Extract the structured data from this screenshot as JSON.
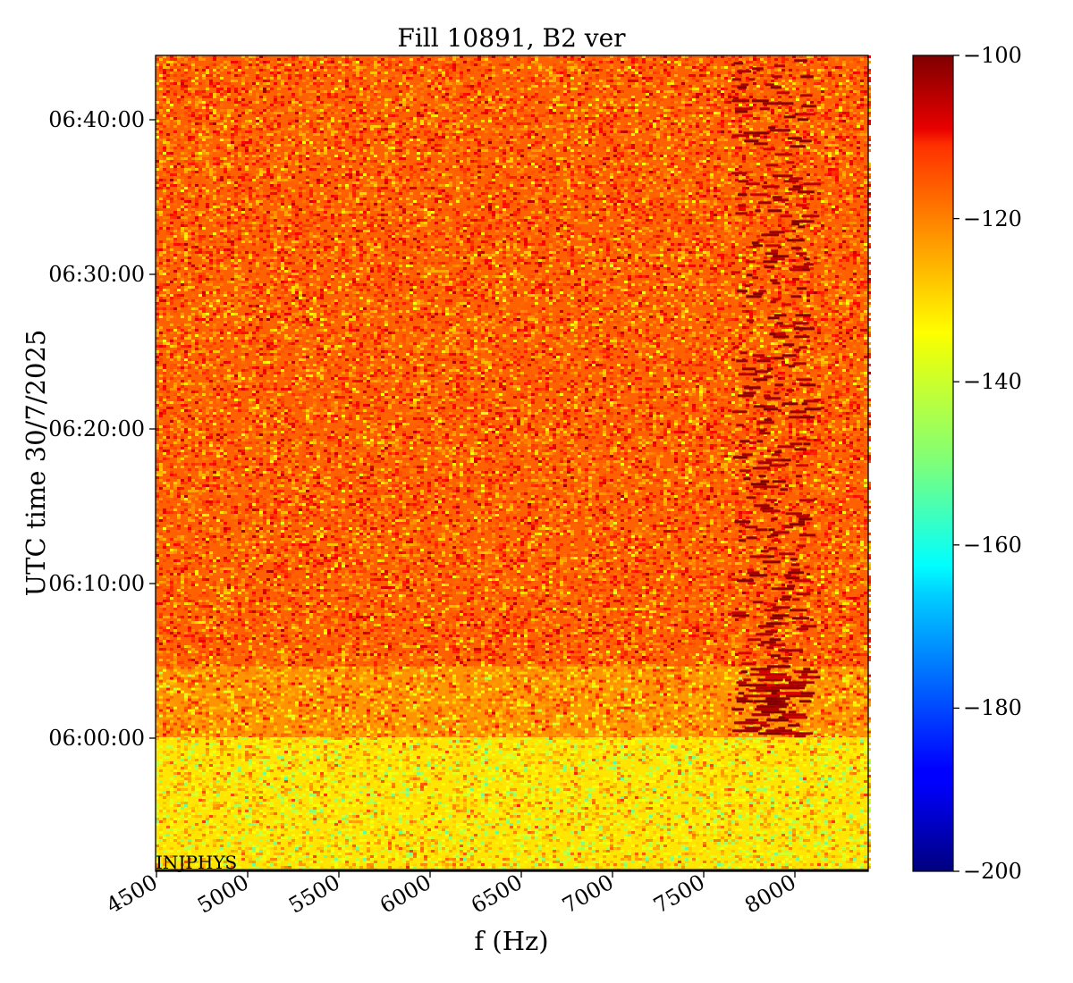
{
  "chart_data": {
    "type": "heatmap",
    "title": "Fill 10891, B2 ver",
    "xlabel": "f (Hz)",
    "ylabel": "UTC time 30/7/2025",
    "xlim": [
      4500,
      8400
    ],
    "x_ticks": [
      "4500",
      "5000",
      "5500",
      "6000",
      "6500",
      "7000",
      "7500",
      "8000"
    ],
    "y_ticks": [
      "06:00:00",
      "06:10:00",
      "06:20:00",
      "06:30:00",
      "06:40:00"
    ],
    "ylim": [
      "05:51:30",
      "06:44:15"
    ],
    "colorbar": {
      "range": [
        -200,
        -100
      ],
      "ticks": [
        "−100",
        "−120",
        "−140",
        "−160",
        "−180",
        "−200"
      ],
      "colormap": "jet"
    },
    "annotation": "INJPHYS",
    "regions": [
      {
        "time_from": "05:51:30",
        "time_to": "06:00:10",
        "level_dB": -135
      },
      {
        "time_from": "06:00:10",
        "time_to": "06:04:45",
        "level_dB": -127
      },
      {
        "time_from": "06:04:45",
        "time_to": "06:44:15",
        "level_dB": -122
      }
    ],
    "feature": {
      "type": "hot line cluster",
      "f_from": 7600,
      "f_to": 8100,
      "time_from": "06:00:10",
      "time_to": "06:44:00",
      "level_dB": -103
    }
  }
}
